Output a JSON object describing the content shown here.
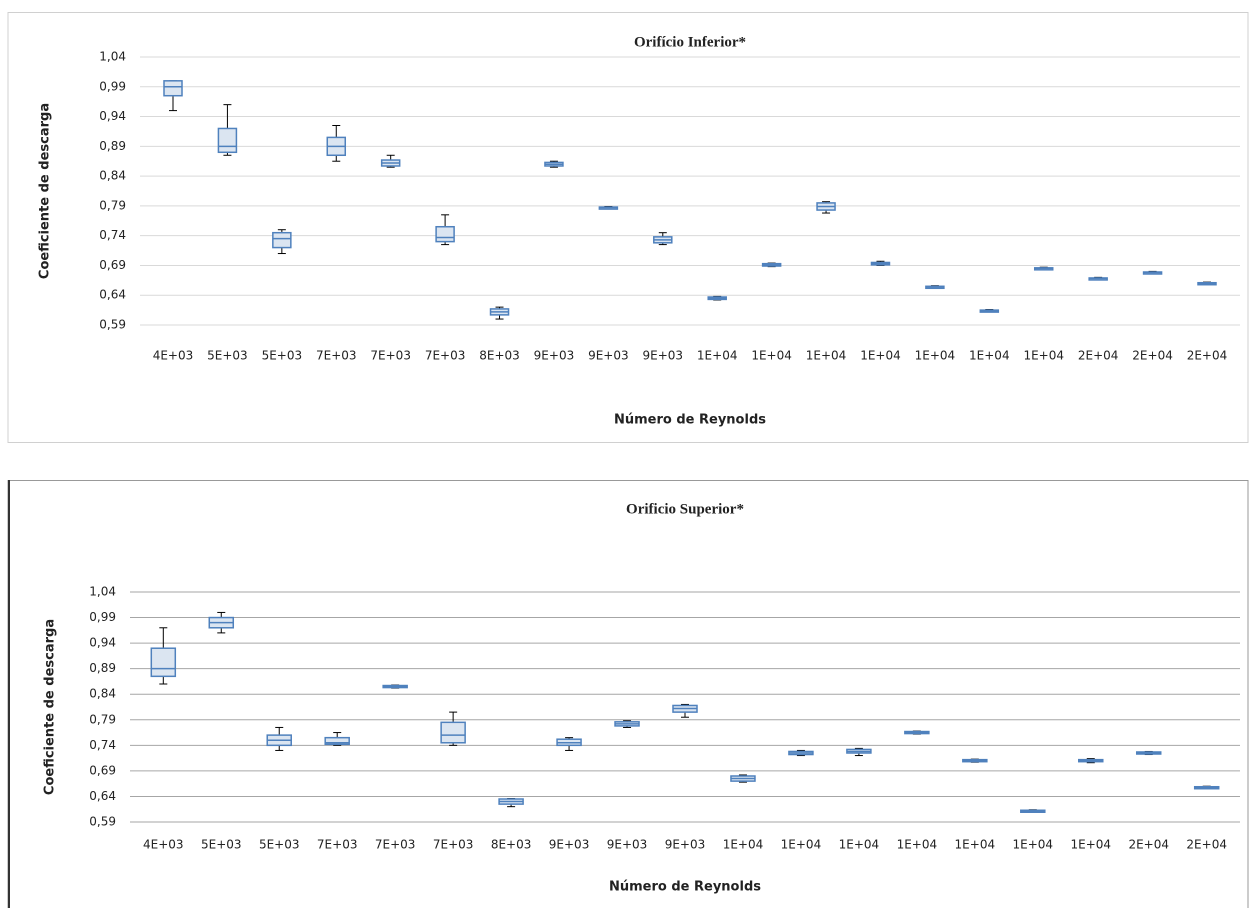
{
  "chart_data": [
    {
      "type": "box",
      "title": "Orifício  Inferior*",
      "xlabel": "Número de Reynolds",
      "ylabel": "Coeficiente de descarga",
      "categories": [
        "4E+03",
        "5E+03",
        "5E+03",
        "7E+03",
        "7E+03",
        "7E+03",
        "8E+03",
        "9E+03",
        "9E+03",
        "9E+03",
        "1E+04",
        "1E+04",
        "1E+04",
        "1E+04",
        "1E+04",
        "1E+04",
        "1E+04",
        "2E+04",
        "2E+04",
        "2E+04"
      ],
      "min": [
        0.95,
        0.875,
        0.71,
        0.865,
        0.855,
        0.725,
        0.6,
        0.855,
        0.785,
        0.725,
        0.632,
        0.688,
        0.778,
        0.69,
        0.652,
        0.612,
        0.683,
        0.666,
        0.676,
        0.658
      ],
      "q1": [
        0.975,
        0.88,
        0.72,
        0.875,
        0.857,
        0.73,
        0.607,
        0.857,
        0.786,
        0.728,
        0.633,
        0.689,
        0.783,
        0.691,
        0.653,
        0.613,
        0.684,
        0.667,
        0.677,
        0.659
      ],
      "median": [
        0.99,
        0.89,
        0.735,
        0.89,
        0.862,
        0.737,
        0.612,
        0.86,
        0.787,
        0.733,
        0.635,
        0.691,
        0.789,
        0.693,
        0.654,
        0.614,
        0.685,
        0.668,
        0.678,
        0.66
      ],
      "q3": [
        1.0,
        0.92,
        0.745,
        0.905,
        0.867,
        0.755,
        0.617,
        0.863,
        0.788,
        0.738,
        0.637,
        0.693,
        0.795,
        0.695,
        0.655,
        0.615,
        0.686,
        0.669,
        0.679,
        0.661
      ],
      "max": [
        1.0,
        0.96,
        0.75,
        0.925,
        0.875,
        0.775,
        0.62,
        0.865,
        0.789,
        0.745,
        0.638,
        0.694,
        0.797,
        0.697,
        0.656,
        0.616,
        0.687,
        0.67,
        0.68,
        0.662
      ],
      "color": "#4f81bd",
      "grid": true,
      "ylim": [
        0.59,
        1.04
      ],
      "yticks": [
        {
          "value": 0.59,
          "label": "0,59"
        },
        {
          "value": 0.64,
          "label": "0,64"
        },
        {
          "value": 0.69,
          "label": "0,69"
        },
        {
          "value": 0.74,
          "label": "0,74"
        },
        {
          "value": 0.79,
          "label": "0,79"
        },
        {
          "value": 0.84,
          "label": "0,84"
        },
        {
          "value": 0.89,
          "label": "0,89"
        },
        {
          "value": 0.94,
          "label": "0,94"
        },
        {
          "value": 0.99,
          "label": "0,99"
        },
        {
          "value": 1.04,
          "label": "1,04"
        }
      ]
    },
    {
      "type": "box",
      "title": "Orificio Superior*",
      "xlabel": "Número de Reynolds",
      "ylabel": "Coeficiente de descarga",
      "categories": [
        "4E+03",
        "5E+03",
        "5E+03",
        "7E+03",
        "7E+03",
        "7E+03",
        "8E+03",
        "9E+03",
        "9E+03",
        "9E+03",
        "1E+04",
        "1E+04",
        "1E+04",
        "1E+04",
        "1E+04",
        "1E+04",
        "1E+04",
        "2E+04",
        "2E+04"
      ],
      "min": [
        0.86,
        0.96,
        0.73,
        0.74,
        0.852,
        0.74,
        0.62,
        0.73,
        0.775,
        0.795,
        0.668,
        0.72,
        0.72,
        0.762,
        0.707,
        0.61,
        0.706,
        0.722,
        0.656
      ],
      "q1": [
        0.875,
        0.97,
        0.74,
        0.742,
        0.853,
        0.745,
        0.625,
        0.74,
        0.778,
        0.805,
        0.67,
        0.722,
        0.725,
        0.763,
        0.708,
        0.611,
        0.708,
        0.723,
        0.657
      ],
      "median": [
        0.89,
        0.98,
        0.75,
        0.745,
        0.855,
        0.76,
        0.63,
        0.745,
        0.782,
        0.812,
        0.675,
        0.725,
        0.728,
        0.765,
        0.71,
        0.612,
        0.71,
        0.725,
        0.658
      ],
      "q3": [
        0.93,
        0.99,
        0.76,
        0.755,
        0.857,
        0.785,
        0.635,
        0.752,
        0.786,
        0.818,
        0.68,
        0.728,
        0.732,
        0.767,
        0.712,
        0.613,
        0.712,
        0.727,
        0.659
      ],
      "max": [
        0.97,
        1.0,
        0.775,
        0.765,
        0.858,
        0.805,
        0.636,
        0.755,
        0.788,
        0.82,
        0.682,
        0.73,
        0.734,
        0.768,
        0.713,
        0.614,
        0.714,
        0.728,
        0.66
      ],
      "color": "#4f81bd",
      "grid": true,
      "ylim": [
        0.59,
        1.04
      ],
      "yticks": [
        {
          "value": 0.59,
          "label": "0,59"
        },
        {
          "value": 0.64,
          "label": "0,64"
        },
        {
          "value": 0.69,
          "label": "0,69"
        },
        {
          "value": 0.74,
          "label": "0,74"
        },
        {
          "value": 0.79,
          "label": "0,79"
        },
        {
          "value": 0.84,
          "label": "0,84"
        },
        {
          "value": 0.89,
          "label": "0,89"
        },
        {
          "value": 0.94,
          "label": "0,94"
        },
        {
          "value": 0.99,
          "label": "0,99"
        },
        {
          "value": 1.04,
          "label": "1,04"
        }
      ]
    }
  ]
}
